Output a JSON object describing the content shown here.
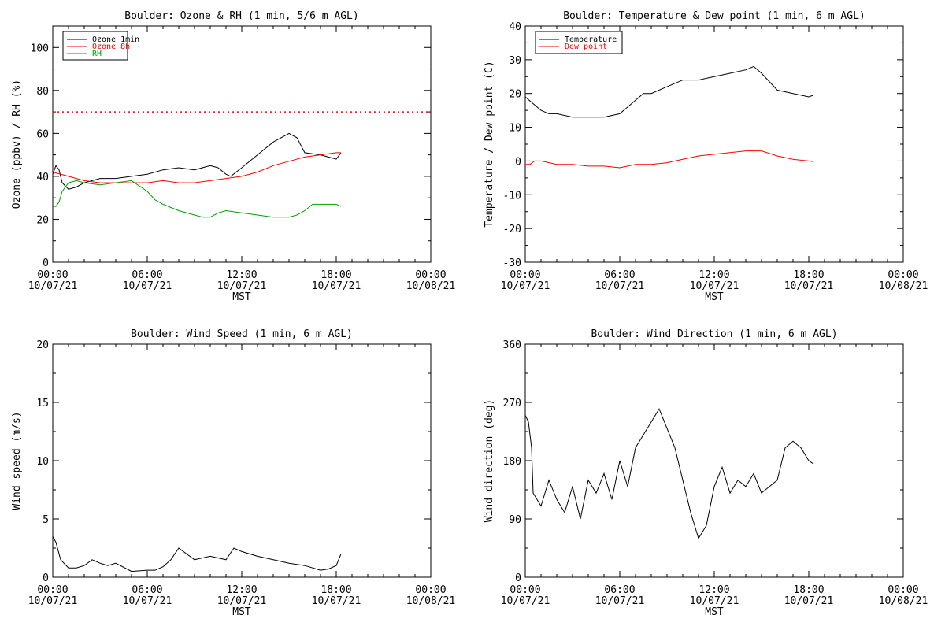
{
  "chart_data": [
    {
      "type": "line",
      "title": "Boulder: Ozone & RH (1 min, 5/6 m AGL)",
      "xlabel": "",
      "ylabel": "Ozone (ppbv) / RH (%)",
      "ylim": [
        0,
        110
      ],
      "yticks": [
        "0",
        "20",
        "40",
        "60",
        "80",
        "100"
      ],
      "xlim": [
        0,
        24
      ],
      "xticks_time": [
        "00:00",
        "06:00",
        "12:00",
        "18:00",
        "00:00"
      ],
      "xticks_date": [
        "10/07/21",
        "10/07/21",
        "10/07/21",
        "10/07/21",
        "10/08/21"
      ],
      "legend_position": "top-left",
      "reference_line": {
        "y": 70,
        "color": "#ff0000",
        "style": "dotted"
      },
      "series": [
        {
          "name": "Ozone 1min",
          "color": "#000000",
          "x": [
            0,
            0.2,
            0.4,
            0.6,
            1.0,
            1.5,
            2.0,
            3.0,
            4.0,
            5.0,
            6.0,
            7.0,
            8.0,
            9.0,
            10.0,
            10.5,
            11.0,
            11.3,
            12.0,
            13.0,
            14.0,
            15.0,
            15.5,
            16.0,
            17.0,
            17.5,
            18.0,
            18.3
          ],
          "y": [
            41,
            45,
            43,
            37,
            34,
            35,
            37,
            39,
            39,
            40,
            41,
            43,
            44,
            43,
            45,
            44,
            41,
            40,
            44,
            50,
            56,
            60,
            58,
            51,
            50,
            49,
            48,
            51
          ]
        },
        {
          "name": "Ozone 8h",
          "color": "#ff0000",
          "x": [
            0,
            1,
            2,
            3,
            4,
            5,
            6,
            7,
            8,
            9,
            10,
            11,
            12,
            13,
            14,
            15,
            16,
            17,
            18,
            18.3
          ],
          "y": [
            42,
            40,
            38,
            37,
            37,
            37,
            37,
            38,
            37,
            37,
            38,
            39,
            40,
            42,
            45,
            47,
            49,
            50,
            51,
            51
          ]
        },
        {
          "name": "RH",
          "color": "#00a000",
          "x": [
            0,
            0.2,
            0.4,
            0.6,
            1.0,
            1.5,
            2.0,
            3.0,
            4.0,
            5.0,
            6.0,
            6.5,
            7.0,
            8.0,
            9.0,
            9.5,
            10.0,
            10.5,
            11.0,
            12.0,
            13.0,
            14.0,
            15.0,
            15.5,
            16.0,
            16.5,
            17.0,
            18.0,
            18.3
          ],
          "y": [
            26,
            26,
            28,
            33,
            37,
            38,
            37,
            36,
            37,
            38,
            33,
            29,
            27,
            24,
            22,
            21,
            21,
            23,
            24,
            23,
            22,
            21,
            21,
            22,
            24,
            27,
            27,
            27,
            26
          ]
        }
      ]
    },
    {
      "type": "line",
      "title": "Boulder: Temperature & Dew point (1 min, 6 m AGL)",
      "xlabel": "MST",
      "ylabel": "Temperature / Dew point (C)",
      "ylim": [
        -30,
        40
      ],
      "yticks": [
        "-30",
        "-20",
        "-10",
        "0",
        "10",
        "20",
        "30",
        "40"
      ],
      "xlim": [
        0,
        24
      ],
      "xticks_time": [
        "00:00",
        "06:00",
        "12:00",
        "18:00",
        "00:00"
      ],
      "xticks_date": [
        "10/07/21",
        "10/07/21",
        "10/07/21",
        "10/07/21",
        "10/08/21"
      ],
      "legend_position": "top-left",
      "series": [
        {
          "name": "Temperature",
          "color": "#000000",
          "x": [
            0,
            0.5,
            1,
            1.5,
            2,
            3,
            4,
            5,
            6,
            7,
            7.5,
            8,
            9,
            10,
            11,
            12,
            13,
            14,
            14.5,
            15,
            16,
            17,
            18,
            18.3
          ],
          "y": [
            19,
            17,
            15,
            14,
            14,
            13,
            13,
            13,
            14,
            18,
            20,
            20,
            22,
            24,
            24,
            25,
            26,
            27,
            28,
            26,
            21,
            20,
            19,
            19.5
          ]
        },
        {
          "name": "Dew point",
          "color": "#ff0000",
          "x": [
            0,
            0.3,
            0.6,
            1,
            2,
            3,
            4,
            5,
            6,
            7,
            8,
            9,
            10,
            11,
            12,
            13,
            14,
            15,
            16,
            17,
            18,
            18.3
          ],
          "y": [
            -1,
            -1,
            0,
            0,
            -1,
            -1,
            -1.5,
            -1.5,
            -2,
            -1,
            -1,
            -0.5,
            0.5,
            1.5,
            2,
            2.5,
            3,
            3,
            1.5,
            0.5,
            0,
            -0.2
          ]
        }
      ]
    },
    {
      "type": "line",
      "title": "Boulder: Wind Speed (1 min, 6 m AGL)",
      "xlabel": "MST",
      "ylabel": "Wind speed (m/s)",
      "ylim": [
        0,
        20
      ],
      "yticks": [
        "0",
        "5",
        "10",
        "15",
        "20"
      ],
      "xlim": [
        0,
        24
      ],
      "xticks_time": [
        "00:00",
        "06:00",
        "12:00",
        "18:00",
        "00:00"
      ],
      "xticks_date": [
        "10/07/21",
        "10/07/21",
        "10/07/21",
        "10/07/21",
        "10/08/21"
      ],
      "series": [
        {
          "name": "",
          "color": "#000000",
          "x": [
            0,
            0.2,
            0.5,
            1,
            1.5,
            2,
            2.5,
            3,
            3.5,
            4,
            5,
            6,
            6.5,
            7,
            7.5,
            8,
            8.5,
            9,
            10,
            11,
            11.5,
            12,
            13,
            14,
            15,
            16,
            17,
            17.5,
            18,
            18.3
          ],
          "y": [
            3.5,
            3,
            1.5,
            0.8,
            0.8,
            1.0,
            1.5,
            1.2,
            1.0,
            1.2,
            0.5,
            0.6,
            0.6,
            0.9,
            1.5,
            2.5,
            2.0,
            1.5,
            1.8,
            1.5,
            2.5,
            2.2,
            1.8,
            1.5,
            1.2,
            1.0,
            0.6,
            0.7,
            1.0,
            2.0
          ]
        }
      ]
    },
    {
      "type": "line",
      "title": "Boulder: Wind Direction (1 min, 6 m AGL)",
      "xlabel": "MST",
      "ylabel": "Wind direction (deg)",
      "ylim": [
        0,
        360
      ],
      "yticks": [
        "0",
        "90",
        "180",
        "270",
        "360"
      ],
      "xlim": [
        0,
        24
      ],
      "xticks_time": [
        "00:00",
        "06:00",
        "12:00",
        "18:00",
        "00:00"
      ],
      "xticks_date": [
        "10/07/21",
        "10/07/21",
        "10/07/21",
        "10/07/21",
        "10/08/21"
      ],
      "series": [
        {
          "name": "",
          "color": "#000000",
          "x": [
            0,
            0.2,
            0.4,
            0.5,
            1,
            1.5,
            2,
            2.5,
            3,
            3.5,
            4,
            4.5,
            5,
            5.5,
            6,
            6.5,
            7,
            7.5,
            8,
            8.5,
            9,
            9.5,
            10,
            10.5,
            11,
            11.5,
            12,
            12.5,
            13,
            13.5,
            14,
            14.5,
            15,
            15.5,
            16,
            16.5,
            17,
            17.5,
            18,
            18.3
          ],
          "y": [
            250,
            240,
            200,
            130,
            110,
            150,
            120,
            100,
            140,
            90,
            150,
            130,
            160,
            120,
            180,
            140,
            200,
            220,
            240,
            260,
            230,
            200,
            150,
            100,
            60,
            80,
            140,
            170,
            130,
            150,
            140,
            160,
            130,
            140,
            150,
            200,
            210,
            200,
            180,
            175
          ]
        }
      ]
    }
  ],
  "axis_title_bottom": "MST"
}
